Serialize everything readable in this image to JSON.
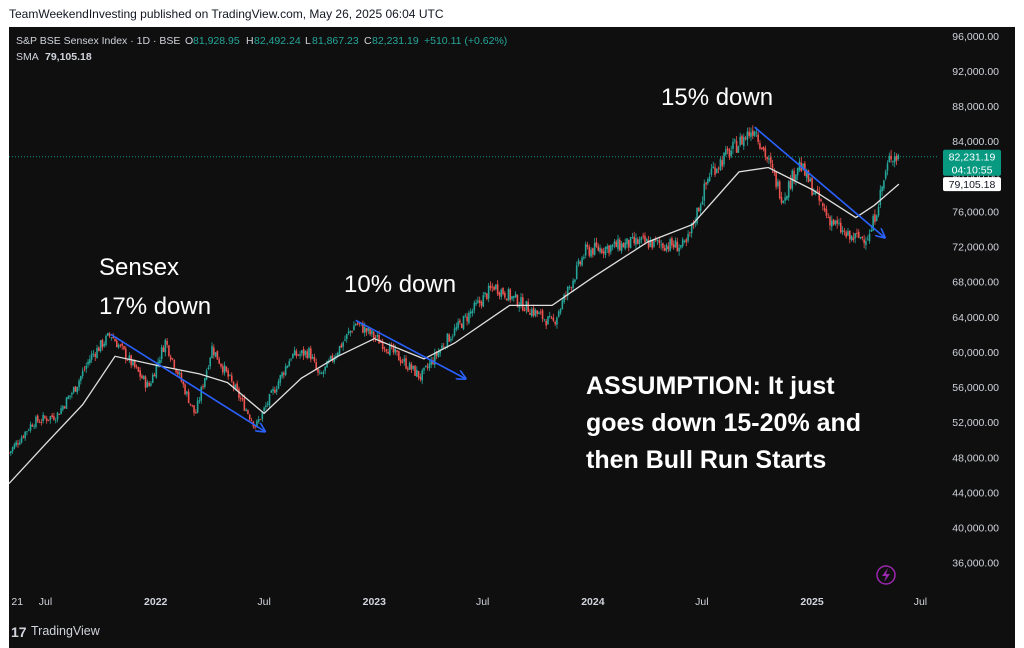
{
  "header": {
    "published": "TeamWeekendInvesting published on TradingView.com, May 26, 2025 06:04 UTC"
  },
  "legend": {
    "symbol": "S&P BSE Sensex Index · 1D · BSE",
    "o_label": "O",
    "o_value": "81,928.95",
    "h_label": "H",
    "h_value": "82,492.24",
    "l_label": "L",
    "l_value": "81,867.23",
    "c_label": "C",
    "c_value": "82,231.19",
    "change": "+510.11 (+0.62%)",
    "sma_label": "SMA",
    "sma_value": "79,105.18"
  },
  "price_badges": {
    "last_price": "82,231.19",
    "countdown": "04:10:55",
    "sma_price": "79,105.18"
  },
  "annotations": {
    "sensex": "Sensex",
    "down_17": "17% down",
    "down_10": "10% down",
    "down_15": "15% down",
    "assumption_line1": "ASSUMPTION: It just",
    "assumption_line2": "goes down 15-20% and",
    "assumption_line3": "then Bull Run Starts"
  },
  "footer": {
    "brand": "TradingView"
  },
  "colors": {
    "background": "#0f0f0f",
    "up_candle": "#26a69a",
    "down_candle": "#ef5350",
    "sma_line": "#e0e0e0",
    "arrow": "#2962ff",
    "price_badge": "#089981",
    "text": "#d1d4dc",
    "lightning_icon": "#9c27b0"
  },
  "chart_data": {
    "type": "candlestick",
    "y_axis": {
      "ticks": [
        "96,000.00",
        "92,000.00",
        "88,000.00",
        "84,000.00",
        "80,000.00",
        "76,000.00",
        "72,000.00",
        "68,000.00",
        "64,000.00",
        "60,000.00",
        "56,000.00",
        "52,000.00",
        "48,000.00",
        "44,000.00",
        "40,000.00",
        "36,000.00"
      ],
      "ylim": [
        33000,
        97000
      ]
    },
    "x_axis": {
      "ticks": [
        "21",
        "Jul",
        "2022",
        "Jul",
        "2023",
        "Jul",
        "2024",
        "Jul",
        "2025",
        "Jul"
      ],
      "major_ticks": [
        "2022",
        "2023",
        "2024",
        "2025"
      ],
      "xlim": [
        "2021-05-01",
        "2025-08-01"
      ]
    },
    "price_path": [
      [
        "2021-05-01",
        48500
      ],
      [
        "2021-06-10",
        52000
      ],
      [
        "2021-07-20",
        52800
      ],
      [
        "2021-08-20",
        56000
      ],
      [
        "2021-09-15",
        59500
      ],
      [
        "2021-10-18",
        62000
      ],
      [
        "2021-12-20",
        56000
      ],
      [
        "2022-01-17",
        61200
      ],
      [
        "2022-03-08",
        52800
      ],
      [
        "2022-04-05",
        60500
      ],
      [
        "2022-06-17",
        51500
      ],
      [
        "2022-08-15",
        59500
      ],
      [
        "2022-09-15",
        60000
      ],
      [
        "2022-10-01",
        57000
      ],
      [
        "2022-12-01",
        63300
      ],
      [
        "2023-01-15",
        61000
      ],
      [
        "2023-03-20",
        57100
      ],
      [
        "2023-05-01",
        61300
      ],
      [
        "2023-07-20",
        67500
      ],
      [
        "2023-10-26",
        63200
      ],
      [
        "2023-12-20",
        71500
      ],
      [
        "2024-03-20",
        72500
      ],
      [
        "2024-06-04",
        72000
      ],
      [
        "2024-07-15",
        80500
      ],
      [
        "2024-09-27",
        85600
      ],
      [
        "2024-11-13",
        77500
      ],
      [
        "2024-12-10",
        81500
      ],
      [
        "2025-01-27",
        75400
      ],
      [
        "2025-03-04",
        72900
      ],
      [
        "2025-04-07",
        73200
      ],
      [
        "2025-05-12",
        82400
      ],
      [
        "2025-05-26",
        82231
      ]
    ],
    "sma_path": [
      [
        "2021-05-01",
        45000
      ],
      [
        "2021-07-01",
        49500
      ],
      [
        "2021-09-01",
        54000
      ],
      [
        "2021-10-25",
        59500
      ],
      [
        "2022-01-01",
        58500
      ],
      [
        "2022-03-15",
        57500
      ],
      [
        "2022-05-01",
        56500
      ],
      [
        "2022-07-01",
        53000
      ],
      [
        "2022-09-01",
        57000
      ],
      [
        "2022-11-01",
        59500
      ],
      [
        "2023-01-01",
        61500
      ],
      [
        "2023-03-25",
        59200
      ],
      [
        "2023-05-15",
        61000
      ],
      [
        "2023-08-15",
        65300
      ],
      [
        "2023-10-25",
        65300
      ],
      [
        "2024-01-01",
        68500
      ],
      [
        "2024-04-01",
        72500
      ],
      [
        "2024-06-15",
        74500
      ],
      [
        "2024-09-01",
        80500
      ],
      [
        "2024-10-20",
        81000
      ],
      [
        "2025-01-01",
        78500
      ],
      [
        "2025-03-15",
        75300
      ],
      [
        "2025-04-15",
        76700
      ],
      [
        "2025-05-26",
        79105
      ]
    ],
    "arrows": [
      {
        "label": "17% down",
        "from": [
          "2021-10-18",
          62000
        ],
        "to": [
          "2022-07-01",
          51000
        ]
      },
      {
        "label": "10% down",
        "from": [
          "2022-12-01",
          63600
        ],
        "to": [
          "2023-06-01",
          57000
        ]
      },
      {
        "label": "15% down",
        "from": [
          "2024-09-27",
          85600
        ],
        "to": [
          "2025-05-01",
          73100
        ]
      }
    ]
  }
}
